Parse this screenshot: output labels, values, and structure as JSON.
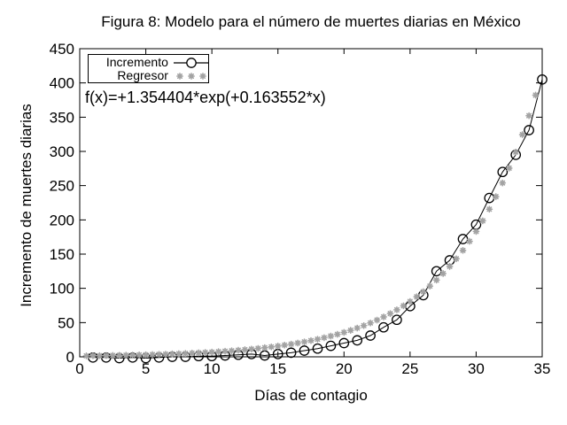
{
  "chart_data": {
    "type": "line",
    "title": "Figura 8: Modelo para el número de muertes diarias en México",
    "xlabel": "Días de contagio",
    "ylabel": "Incremento de muertes diarias",
    "xlim": [
      0,
      35
    ],
    "ylim": [
      0,
      450
    ],
    "xticks": [
      "0",
      "5",
      "10",
      "15",
      "20",
      "25",
      "30",
      "35"
    ],
    "xtick_values": [
      0,
      5,
      10,
      15,
      20,
      25,
      30,
      35
    ],
    "yticks": [
      "0",
      "50",
      "100",
      "150",
      "200",
      "250",
      "300",
      "350",
      "400",
      "450"
    ],
    "ytick_values": [
      0,
      50,
      100,
      150,
      200,
      250,
      300,
      350,
      400,
      450
    ],
    "grid": false,
    "legend_position": "top-left",
    "annotation": "f(x)=+1.354404*exp(+0.163552*x)",
    "colors": {
      "incremento": "#000000",
      "regresor": "#a3a3a3",
      "frame": "#000000"
    },
    "series": [
      {
        "name": "Incremento",
        "style": "linespoints",
        "marker": "open-circle",
        "color": "#000000",
        "x": [
          1,
          2,
          3,
          4,
          5,
          6,
          7,
          8,
          9,
          10,
          11,
          12,
          13,
          14,
          15,
          16,
          17,
          18,
          19,
          20,
          21,
          22,
          23,
          24,
          25,
          26,
          27,
          28,
          29,
          30,
          31,
          32,
          33,
          34,
          35
        ],
        "y": [
          -1,
          -1,
          -2,
          -1,
          -2,
          -1,
          0,
          0,
          1,
          1,
          2,
          3,
          4,
          2,
          4,
          6,
          9,
          12,
          16,
          20,
          24,
          31,
          43,
          54,
          74,
          90,
          125,
          141,
          172,
          193,
          232,
          270,
          295,
          331,
          405
        ]
      },
      {
        "name": "Regresor",
        "style": "points",
        "marker": "asterisk",
        "color": "#a3a3a3",
        "function": {
          "expr": "a*exp(b*x)",
          "a": 1.354404,
          "b": 0.163552
        },
        "x_start": 0.5,
        "x_end": 34.5,
        "x_step": 0.5
      }
    ]
  }
}
